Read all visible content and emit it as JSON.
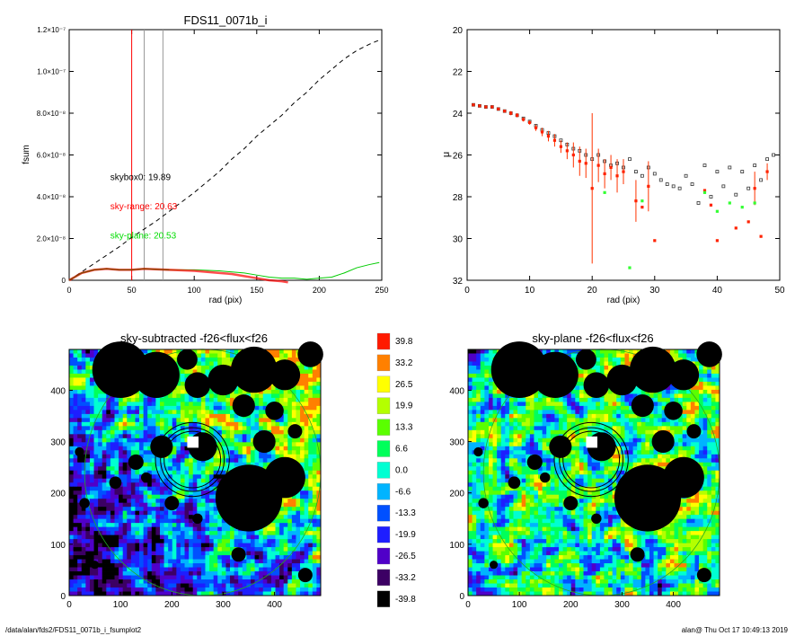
{
  "footer": {
    "left": "/data/alan/fds2/FDS11_0071b_i_fsumplot2",
    "right": "alan@  Thu Oct 17 10:49:13 2019"
  },
  "colors": {
    "red": "#ff0000",
    "green": "#00dd00",
    "black": "#000000",
    "gray": "#888888"
  },
  "chart_data": [
    {
      "type": "line",
      "title": "FDS11_0071b_i",
      "xlabel": "rad (pix)",
      "ylabel": "fsum",
      "xlim": [
        0,
        250
      ],
      "ylim": [
        0,
        1.2e-07
      ],
      "xticks": [
        "0",
        "50",
        "100",
        "150",
        "200",
        "250"
      ],
      "yticks": [
        "0",
        "2.0×10⁻⁸",
        "4.0×10⁻⁸",
        "6.0×10⁻⁸",
        "8.0×10⁻⁸",
        "1.0×10⁻⁷",
        "1.2×10⁻⁷"
      ],
      "vlines": [
        {
          "x": 50,
          "color": "red"
        },
        {
          "x": 60,
          "color": "gray"
        },
        {
          "x": 75,
          "color": "gray"
        }
      ],
      "annotations": [
        {
          "label": "skybox0: 19.89",
          "color": "black",
          "x": 30,
          "y": 4.8e-08
        },
        {
          "label": "sky-range: 20.63",
          "color": "red",
          "x": 30,
          "y": 3.4e-08
        },
        {
          "label": "sky-plane: 20.53",
          "color": "green",
          "x": 30,
          "y": 2e-08
        }
      ],
      "series": [
        {
          "style": "dashed-black",
          "x": [
            0,
            10,
            20,
            30,
            40,
            50,
            60,
            70,
            80,
            90,
            100,
            110,
            120,
            130,
            140,
            150,
            160,
            170,
            180,
            190,
            200,
            210,
            220,
            230,
            240,
            248
          ],
          "y": [
            0,
            4e-09,
            8e-09,
            1.2e-08,
            1.6e-08,
            2.05e-08,
            2.45e-08,
            2.85e-08,
            3.3e-08,
            3.75e-08,
            4.2e-08,
            4.7e-08,
            5.2e-08,
            5.8e-08,
            6.3e-08,
            6.9e-08,
            7.4e-08,
            7.9e-08,
            8.5e-08,
            9e-08,
            9.6e-08,
            1.01e-07,
            1.06e-07,
            1.1e-07,
            1.13e-07,
            1.15e-07
          ]
        },
        {
          "style": "green",
          "x": [
            0,
            10,
            20,
            30,
            40,
            50,
            60,
            80,
            100,
            120,
            140,
            150,
            160,
            170,
            180,
            190,
            200,
            210,
            220,
            230,
            240,
            248
          ],
          "y": [
            0,
            3.5e-09,
            5e-09,
            5.5e-09,
            5e-09,
            5e-09,
            5.5e-09,
            5e-09,
            5e-09,
            4.5e-09,
            3.5e-09,
            2.5e-09,
            1.5e-09,
            1e-09,
            1e-09,
            5e-10,
            1e-09,
            1.5e-09,
            3.5e-09,
            6e-09,
            7.5e-09,
            8.5e-09
          ]
        },
        {
          "style": "red",
          "x": [
            0,
            10,
            20,
            30,
            40,
            50,
            60,
            80,
            100,
            120,
            130,
            140,
            150,
            160,
            170,
            175
          ],
          "y": [
            0,
            3.5e-09,
            5e-09,
            5.5e-09,
            5e-09,
            5e-09,
            5.5e-09,
            5e-09,
            4.5e-09,
            3.5e-09,
            3e-09,
            2e-09,
            1e-09,
            0.0,
            -5e-10,
            -1e-09
          ]
        }
      ]
    },
    {
      "type": "scatter",
      "xlabel": "rad (pix)",
      "ylabel": "μ",
      "xlim": [
        0,
        50
      ],
      "ylim": [
        32,
        20
      ],
      "xticks": [
        "0",
        "10",
        "20",
        "30",
        "40",
        "50"
      ],
      "yticks": [
        "20",
        "22",
        "24",
        "26",
        "28",
        "30",
        "32"
      ],
      "series": [
        {
          "name": "",
          "color": "black",
          "marker": "square-open",
          "x": [
            1,
            2,
            3,
            4,
            5,
            6,
            7,
            8,
            9,
            10,
            11,
            12,
            13,
            14,
            15,
            16,
            17,
            18,
            19,
            20,
            21,
            22,
            23,
            24,
            25,
            26,
            27,
            28,
            29,
            30,
            31,
            32,
            33,
            34,
            35,
            36,
            37,
            38,
            39,
            40,
            41,
            42,
            43,
            44,
            45,
            46,
            47,
            48,
            49
          ],
          "y": [
            23.6,
            23.65,
            23.7,
            23.7,
            23.8,
            23.9,
            24.0,
            24.1,
            24.25,
            24.4,
            24.6,
            24.8,
            24.95,
            25.1,
            25.3,
            25.5,
            25.7,
            25.8,
            26.0,
            26.2,
            26.0,
            26.3,
            26.5,
            26.4,
            26.6,
            26.2,
            26.8,
            27.0,
            26.6,
            26.9,
            27.2,
            27.4,
            27.5,
            27.6,
            27.0,
            27.4,
            28.3,
            26.5,
            28.0,
            26.8,
            27.5,
            26.6,
            27.9,
            26.8,
            27.6,
            26.5,
            27.2,
            26.2,
            26.0
          ]
        },
        {
          "name": "",
          "color": "red",
          "marker": "square-filled",
          "x": [
            1,
            2,
            3,
            4,
            5,
            6,
            7,
            8,
            9,
            10,
            11,
            12,
            13,
            14,
            15,
            16,
            17,
            18,
            19,
            20,
            21,
            22,
            23,
            24,
            25,
            27,
            28,
            29,
            30,
            38,
            39,
            40,
            43,
            45,
            46,
            47,
            48
          ],
          "y": [
            23.6,
            23.65,
            23.7,
            23.7,
            23.8,
            23.9,
            24.0,
            24.1,
            24.3,
            24.45,
            24.7,
            24.9,
            25.1,
            25.3,
            25.6,
            25.8,
            26.0,
            26.3,
            26.4,
            27.6,
            26.5,
            26.9,
            26.6,
            27.0,
            26.8,
            28.2,
            28.5,
            27.5,
            30.1,
            27.7,
            28.4,
            30.1,
            29.5,
            29.2,
            27.6,
            29.9,
            26.8
          ],
          "err": [
            0.05,
            0.05,
            0.05,
            0.05,
            0.05,
            0.05,
            0.1,
            0.1,
            0.1,
            0.1,
            0.15,
            0.2,
            0.25,
            0.3,
            0.3,
            0.4,
            0.6,
            0.7,
            0.7,
            3.6,
            0.8,
            0.7,
            0.6,
            0.8,
            0.6,
            1.0,
            0.0,
            1.2,
            0.0,
            0.0,
            0.0,
            0.0,
            0.0,
            0.0,
            0.8,
            0.0,
            0.4
          ]
        },
        {
          "name": "",
          "color": "green",
          "marker": "square-filled",
          "x": [
            22,
            26,
            28,
            38,
            40,
            42,
            44,
            46
          ],
          "y": [
            27.8,
            31.4,
            28.2,
            27.8,
            28.7,
            28.3,
            28.5,
            28.3
          ]
        }
      ]
    },
    {
      "type": "heatmap",
      "title": "sky-subtracted -f26<flux<f26",
      "xticks": [
        "0",
        "100",
        "200",
        "300",
        "400"
      ],
      "yticks": [
        "0",
        "100",
        "200",
        "300",
        "400"
      ],
      "xlim": [
        0,
        490
      ],
      "ylim": [
        0,
        490
      ]
    },
    {
      "type": "heatmap",
      "title": "sky-plane -f26<flux<f26",
      "xticks": [
        "0",
        "100",
        "200",
        "300",
        "400"
      ],
      "yticks": [
        "0",
        "100",
        "200",
        "300",
        "400"
      ],
      "xlim": [
        0,
        490
      ],
      "ylim": [
        0,
        490
      ]
    },
    {
      "type": "colorbar",
      "labels": [
        "39.8",
        "33.2",
        "26.5",
        "19.9",
        "13.3",
        "6.6",
        "0.0",
        "-6.6",
        "-13.3",
        "-19.9",
        "-26.5",
        "-33.2",
        "-39.8"
      ],
      "colors": [
        "#ff1a00",
        "#ff8000",
        "#ffff00",
        "#b4ff00",
        "#5aff00",
        "#00ff5a",
        "#00ffd2",
        "#00b4ff",
        "#0050ff",
        "#1e1eff",
        "#5000c8",
        "#3c0064",
        "#000000"
      ]
    }
  ],
  "masks": [
    {
      "cx": 100,
      "cy": 440,
      "r": 55
    },
    {
      "cx": 170,
      "cy": 430,
      "r": 45
    },
    {
      "cx": 250,
      "cy": 410,
      "r": 25
    },
    {
      "cx": 300,
      "cy": 420,
      "r": 30
    },
    {
      "cx": 360,
      "cy": 440,
      "r": 45
    },
    {
      "cx": 420,
      "cy": 430,
      "r": 30
    },
    {
      "cx": 470,
      "cy": 470,
      "r": 25
    },
    {
      "cx": 230,
      "cy": 460,
      "r": 20
    },
    {
      "cx": 340,
      "cy": 370,
      "r": 22
    },
    {
      "cx": 400,
      "cy": 360,
      "r": 18
    },
    {
      "cx": 380,
      "cy": 300,
      "r": 22
    },
    {
      "cx": 440,
      "cy": 320,
      "r": 14
    },
    {
      "cx": 260,
      "cy": 290,
      "r": 28
    },
    {
      "cx": 180,
      "cy": 290,
      "r": 22
    },
    {
      "cx": 130,
      "cy": 260,
      "r": 15
    },
    {
      "cx": 350,
      "cy": 190,
      "r": 65
    },
    {
      "cx": 420,
      "cy": 230,
      "r": 40
    },
    {
      "cx": 200,
      "cy": 180,
      "r": 14
    },
    {
      "cx": 30,
      "cy": 180,
      "r": 10
    },
    {
      "cx": 90,
      "cy": 220,
      "r": 12
    },
    {
      "cx": 330,
      "cy": 80,
      "r": 14
    },
    {
      "cx": 460,
      "cy": 40,
      "r": 14
    },
    {
      "cx": 20,
      "cy": 280,
      "r": 9
    },
    {
      "cx": 150,
      "cy": 230,
      "r": 10
    },
    {
      "cx": 250,
      "cy": 150,
      "r": 10
    },
    {
      "cx": 50,
      "cy": 60,
      "r": 8
    }
  ]
}
